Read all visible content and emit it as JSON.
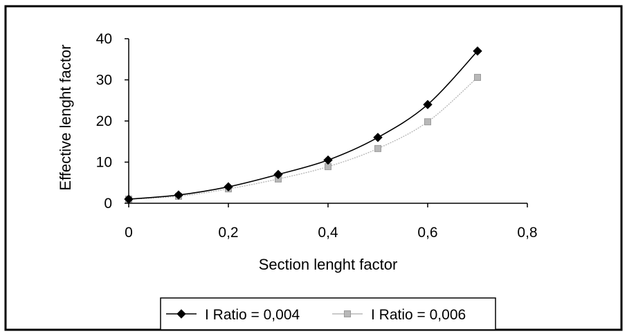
{
  "chart_data": {
    "type": "line",
    "xlabel": "Section lenght factor",
    "ylabel": "Effective lenght factor",
    "xlim": [
      0,
      0.8
    ],
    "ylim": [
      0,
      40
    ],
    "xticks": [
      "0",
      "0,2",
      "0,4",
      "0,6",
      "0,8"
    ],
    "yticks": [
      "0",
      "10",
      "20",
      "30",
      "40"
    ],
    "x": [
      0,
      0.1,
      0.2,
      0.3,
      0.4,
      0.5,
      0.6,
      0.7
    ],
    "series": [
      {
        "name": "I Ratio = 0,004",
        "values": [
          1.0,
          2.0,
          4.0,
          7.0,
          10.5,
          16.0,
          24.0,
          37.0
        ],
        "color": "#000000",
        "marker": "diamond"
      },
      {
        "name": "I Ratio = 0,006",
        "values": [
          1.0,
          1.7,
          3.5,
          5.9,
          8.9,
          13.3,
          19.8,
          30.6
        ],
        "color": "#b8b8b8",
        "marker": "square"
      }
    ],
    "grid": false,
    "legend_position": "bottom"
  }
}
